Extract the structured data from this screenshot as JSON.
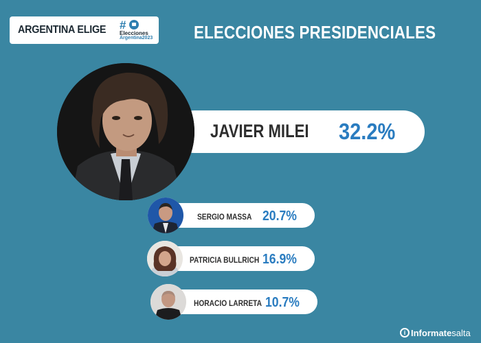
{
  "header": {
    "badge_label": "ARGENTINA ELIGE",
    "logo_hash": "#",
    "logo_line1": "Elecciones",
    "logo_line2": "Argentina2023",
    "title": "ELECCIONES PRESIDENCIALES"
  },
  "winner": {
    "name": "JAVIER MILEI",
    "percent": "32.2%",
    "photo_icon": "portrait-photo"
  },
  "candidates": [
    {
      "name": "SERGIO MASSA",
      "percent": "20.7%"
    },
    {
      "name": "PATRICIA BULLRICH",
      "percent": "16.9%"
    },
    {
      "name": "HORACIO LARRETA",
      "percent": "10.7%"
    }
  ],
  "footer": {
    "brand_icon": "info-icon",
    "brand_strong": "Informate",
    "brand_light": "salta"
  },
  "colors": {
    "background": "#3a86a2",
    "accent": "#2a7cc0",
    "text": "#2e2e2e"
  }
}
